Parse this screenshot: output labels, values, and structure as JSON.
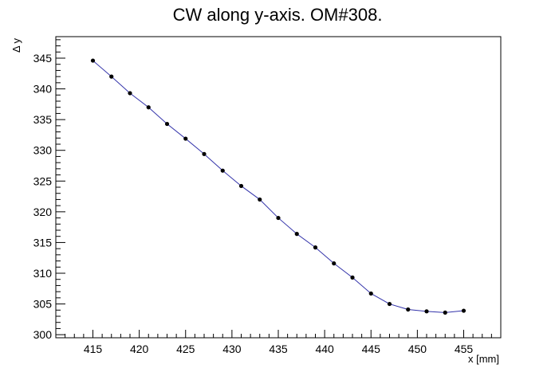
{
  "chart_data": {
    "type": "line",
    "title": "CW along y-axis. OM#308.",
    "xlabel": "x [mm]",
    "ylabel": "Δ y",
    "xlim": [
      411,
      459
    ],
    "ylim": [
      299.5,
      348.5
    ],
    "x_ticks": [
      415,
      420,
      425,
      430,
      435,
      440,
      445,
      450,
      455
    ],
    "y_ticks": [
      300,
      305,
      310,
      315,
      320,
      325,
      330,
      335,
      340,
      345
    ],
    "grid": false,
    "line_color": "#3333aa",
    "marker_color": "#000000",
    "series": [
      {
        "x": [
          415,
          417,
          419,
          421,
          423,
          425,
          427,
          429,
          431,
          433,
          435,
          437,
          439,
          441,
          443,
          445,
          447,
          449,
          451,
          453,
          455
        ],
        "y": [
          344.6,
          342.0,
          339.3,
          337.0,
          334.3,
          331.9,
          329.4,
          326.7,
          324.2,
          322.0,
          319.0,
          316.4,
          314.2,
          311.6,
          309.3,
          306.7,
          305.0,
          304.1,
          303.8,
          303.6,
          303.9
        ]
      }
    ]
  }
}
